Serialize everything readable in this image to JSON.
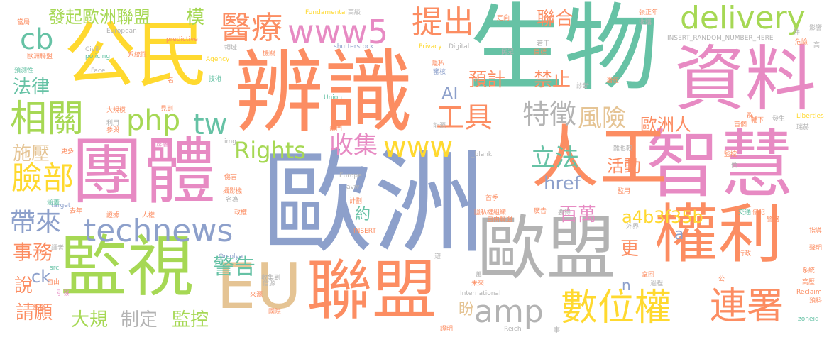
{
  "palette": {
    "green": "#66c2a5",
    "orange": "#fc8d62",
    "blue": "#8da0cb",
    "pink": "#e78ac3",
    "lime": "#a6d854",
    "yellow": "#ffd92f",
    "tan": "#e5c494",
    "gray": "#b3b3b3"
  },
  "words": {
    "ouzhou": "歐洲",
    "shengwu": "生物",
    "bianshi": "辨識",
    "zhihui": "智慧",
    "ziliao": "資料",
    "gongmin": "公民",
    "tuanti": "團體",
    "rengong": "人工",
    "oumeng": "歐盟",
    "quanli": "權利",
    "jianshi": "監視",
    "lianmeng": "聯盟",
    "eu": "EU",
    "www5": "www5",
    "tichu": "提出",
    "yiliao": "醫療",
    "delivery": "delivery",
    "xiangguan": "相關",
    "shuweiquan": "數位權",
    "lianshu": "連署",
    "technews": "technews",
    "amp": "amp",
    "php": "php",
    "tw": "tw",
    "tezheng": "特徵",
    "fengxian": "風險",
    "gongju": "工具",
    "shouji": "收集",
    "www": "www",
    "rights": "Rights",
    "lifa": "立法",
    "lianbu": "臉部",
    "dailai": "帶來",
    "cb": "cb",
    "fadou": "發起歐洲聯盟",
    "lianhe": "聯合",
    "yuji": "預計",
    "jinzhi": "禁止",
    "ai": "AI",
    "ouzhouren": "歐洲人",
    "huodong": "活動",
    "href": "href",
    "a4b3f35b": "a4b3f35b",
    "baiwan": "百萬",
    "jinggao": "警告",
    "geng": "更",
    "falu": "法律",
    "shiya": "施壓",
    "shiwu": "事務",
    "shuo": "說",
    "ck": "ck",
    "qingyuan": "請願",
    "dagui": "大規",
    "zhiding": "制定",
    "jiankong": "監控",
    "mo": "模",
    "yue": "約",
    "n": "n",
    "pan": "盼",
    "a": "a",
    "small_left": [
      "當局",
      "歐洲聯盟",
      "European",
      "Civil",
      "policing",
      "系統性",
      "Face",
      "預測性",
      "名",
      "Agency",
      "技術",
      "大規模",
      "見到",
      "參與",
      "利用",
      "影響",
      "img",
      "更多",
      "傷害",
      "攝影機",
      "target",
      "涵蓋",
      "名為",
      "去年",
      "政權",
      "人權",
      "證據",
      "src",
      "譯者",
      "自由",
      "監督",
      "引發",
      "Fundamental",
      "Privacy",
      "predictive",
      "領域",
      "機關"
    ],
    "small_mid": [
      "高級",
      "shutterstock",
      "Digital",
      "隱私",
      "審核",
      "Union",
      "部門",
      "能源",
      "_blank",
      "avw",
      "計劃",
      "Europe",
      "INSERT",
      "來源",
      "國際",
      "信源",
      "Orsolya",
      "收集到",
      "International",
      "隱私權組織",
      "Reich",
      "證明",
      "民眾",
      "定向",
      "目標",
      "若干",
      "首季",
      "廣告",
      "要得",
      "自由聯盟",
      "遊",
      "萬",
      "未來",
      "過程",
      "事",
      "拿回"
    ],
    "small_right": [
      "張正年",
      "收購",
      "INSERT_RANDOM_NUMBER_HERE",
      "件",
      "高",
      "影響",
      "危險",
      "潛在",
      "診斷",
      "群",
      "發生",
      "瑞赫",
      "Liberties",
      "首個",
      "輔下",
      "難也較",
      "做",
      "監控",
      "監用",
      "交通",
      "侵犯",
      "警務",
      "外界",
      "行政",
      "系統",
      "指導",
      "聲明",
      "預料",
      "Reclaim",
      "zoneid",
      "高壓",
      "公"
    ]
  }
}
